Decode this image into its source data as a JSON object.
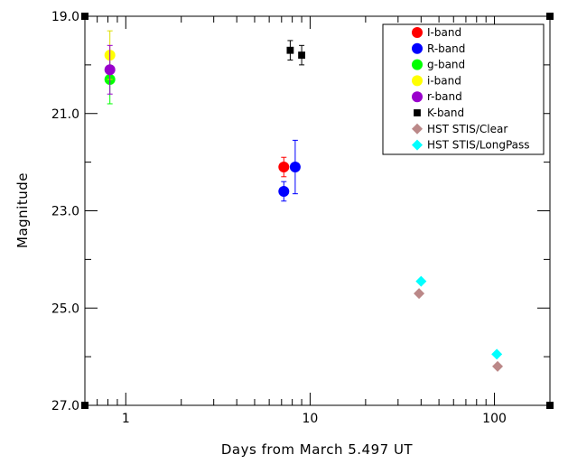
{
  "chart_data": {
    "type": "scatter",
    "title": "",
    "xlabel": "Days from March 5.497 UT",
    "ylabel": "Magnitude",
    "xscale": "log",
    "xlim": [
      0.6,
      200
    ],
    "ylim": [
      19.0,
      27.0
    ],
    "y_inverted": true,
    "x_ticks": [
      1,
      10,
      100
    ],
    "x_tick_labels": [
      "1",
      "10",
      "100"
    ],
    "y_ticks": [
      19,
      21,
      23,
      25,
      27
    ],
    "y_tick_labels": [
      "19.0",
      "21.0",
      "23.0",
      "25.0",
      "27.0"
    ],
    "grid": false,
    "legend_position": "top-right",
    "series": [
      {
        "name": "I-band",
        "marker": "circle",
        "color": "#ff0000",
        "points": [
          {
            "x": 7.2,
            "y": 22.1,
            "err": 0.2
          }
        ]
      },
      {
        "name": "R-band",
        "marker": "circle",
        "color": "#0000ff",
        "points": [
          {
            "x": 7.2,
            "y": 22.6,
            "err": 0.2
          },
          {
            "x": 8.3,
            "y": 22.1,
            "err": 0.55
          }
        ]
      },
      {
        "name": "g-band",
        "marker": "circle",
        "color": "#00ff00",
        "points": [
          {
            "x": 0.82,
            "y": 20.3,
            "err": 0.5
          }
        ]
      },
      {
        "name": "i-band",
        "marker": "circle",
        "color": "#ffff00",
        "points": [
          {
            "x": 0.82,
            "y": 19.8,
            "err": 0.5
          }
        ]
      },
      {
        "name": "r-band",
        "marker": "circle",
        "color": "#9900cc",
        "points": [
          {
            "x": 0.82,
            "y": 20.1,
            "err": 0.5
          }
        ]
      },
      {
        "name": "K-band",
        "marker": "square",
        "color": "#000000",
        "points": [
          {
            "x": 7.8,
            "y": 19.7,
            "err": 0.2
          },
          {
            "x": 9.0,
            "y": 19.8,
            "err": 0.2
          }
        ]
      },
      {
        "name": "HST STIS/Clear",
        "marker": "diamond",
        "color": "#bb8888",
        "points": [
          {
            "x": 39,
            "y": 24.7
          },
          {
            "x": 104,
            "y": 26.2
          }
        ]
      },
      {
        "name": "HST STIS/LongPass",
        "marker": "diamond",
        "color": "#00ffff",
        "points": [
          {
            "x": 40,
            "y": 24.45
          },
          {
            "x": 103,
            "y": 25.95
          }
        ]
      }
    ]
  }
}
